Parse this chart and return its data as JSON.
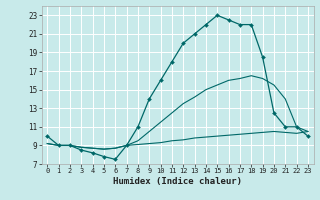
{
  "xlabel": "Humidex (Indice chaleur)",
  "bg_color": "#c8eaea",
  "grid_color": "#ffffff",
  "line_color": "#006868",
  "xlim": [
    -0.5,
    23.5
  ],
  "ylim": [
    7,
    24
  ],
  "xticks": [
    0,
    1,
    2,
    3,
    4,
    5,
    6,
    7,
    8,
    9,
    10,
    11,
    12,
    13,
    14,
    15,
    16,
    17,
    18,
    19,
    20,
    21,
    22,
    23
  ],
  "yticks": [
    7,
    9,
    11,
    13,
    15,
    17,
    19,
    21,
    23
  ],
  "series1_x": [
    0,
    1,
    2,
    3,
    4,
    5,
    6,
    7,
    8,
    9,
    10,
    11,
    12,
    13,
    14,
    15,
    16,
    17,
    18,
    19,
    20,
    21,
    22,
    23
  ],
  "series1_y": [
    10,
    9,
    9,
    8.5,
    8.2,
    7.8,
    7.5,
    9,
    11,
    14,
    16,
    18,
    20,
    21,
    22,
    23,
    22.5,
    22,
    22,
    18.5,
    12.5,
    11,
    11,
    10
  ],
  "series2_x": [
    0,
    1,
    2,
    3,
    4,
    5,
    6,
    7,
    8,
    9,
    10,
    11,
    12,
    13,
    14,
    15,
    16,
    17,
    18,
    19,
    20,
    21,
    22,
    23
  ],
  "series2_y": [
    9.2,
    9.0,
    9.0,
    8.8,
    8.7,
    8.6,
    8.7,
    9.0,
    9.1,
    9.2,
    9.3,
    9.5,
    9.6,
    9.8,
    9.9,
    10.0,
    10.1,
    10.2,
    10.3,
    10.4,
    10.5,
    10.4,
    10.3,
    10.5
  ],
  "series3_x": [
    0,
    1,
    2,
    3,
    4,
    5,
    6,
    7,
    8,
    9,
    10,
    11,
    12,
    13,
    14,
    15,
    16,
    17,
    18,
    19,
    20,
    21,
    22,
    23
  ],
  "series3_y": [
    9.2,
    9.0,
    9.0,
    8.8,
    8.7,
    8.6,
    8.7,
    9.0,
    9.5,
    10.5,
    11.5,
    12.5,
    13.5,
    14.2,
    15.0,
    15.5,
    16.0,
    16.2,
    16.5,
    16.2,
    15.5,
    14.0,
    11.0,
    10.5
  ]
}
